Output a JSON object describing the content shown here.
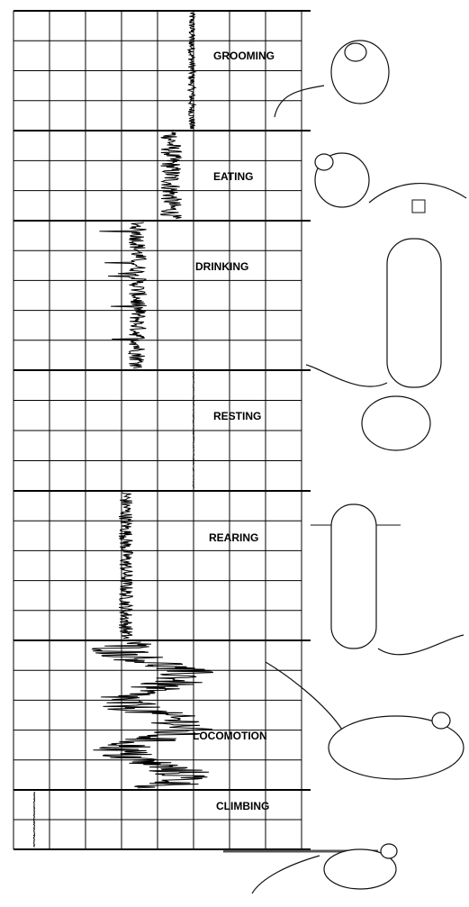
{
  "behaviors": [
    {
      "label": "GROOMING"
    },
    {
      "label": "EATING"
    },
    {
      "label": "DRINKING"
    },
    {
      "label": "RESTING"
    },
    {
      "label": "REARING"
    },
    {
      "label": "LOCOMOTION"
    },
    {
      "label": "CLIMBING"
    }
  ]
}
